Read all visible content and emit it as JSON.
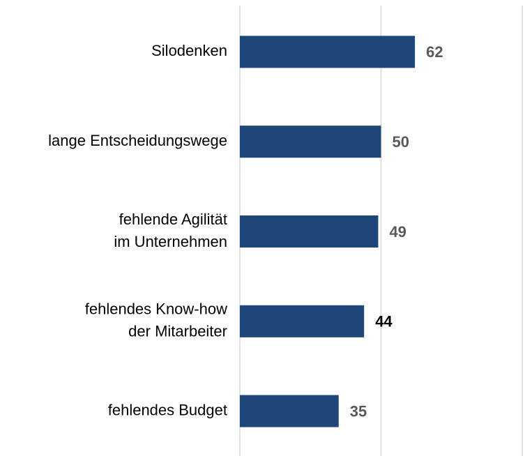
{
  "chart_data": {
    "type": "barh",
    "categories": [
      [
        "Silodenken"
      ],
      [
        "lange Entscheidungswege"
      ],
      [
        "fehlende Agilität",
        "im Unternehmen"
      ],
      [
        "fehlendes Know-how",
        "der Mitarbeiter"
      ],
      [
        "fehlendes Budget"
      ]
    ],
    "values": [
      62,
      50,
      49,
      44,
      35
    ],
    "color": "#1f4678",
    "value_label_colors": [
      "#595959",
      "#595959",
      "#595959",
      "#000000",
      "#595959"
    ],
    "xlim": [
      0,
      100
    ],
    "xticks": [
      0,
      50,
      100
    ],
    "grid": true
  }
}
